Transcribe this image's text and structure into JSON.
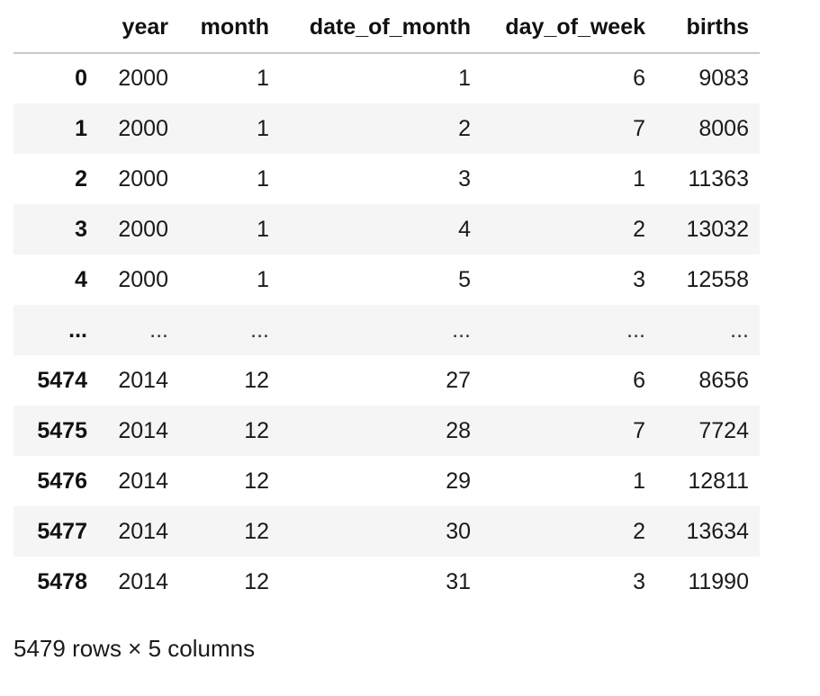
{
  "table": {
    "columns": [
      "",
      "year",
      "month",
      "date_of_month",
      "day_of_week",
      "births"
    ],
    "rows": [
      {
        "index": "0",
        "cells": [
          "2000",
          "1",
          "1",
          "6",
          "9083"
        ]
      },
      {
        "index": "1",
        "cells": [
          "2000",
          "1",
          "2",
          "7",
          "8006"
        ]
      },
      {
        "index": "2",
        "cells": [
          "2000",
          "1",
          "3",
          "1",
          "11363"
        ]
      },
      {
        "index": "3",
        "cells": [
          "2000",
          "1",
          "4",
          "2",
          "13032"
        ]
      },
      {
        "index": "4",
        "cells": [
          "2000",
          "1",
          "5",
          "3",
          "12558"
        ]
      },
      {
        "index": "...",
        "cells": [
          "...",
          "...",
          "...",
          "...",
          "..."
        ]
      },
      {
        "index": "5474",
        "cells": [
          "2014",
          "12",
          "27",
          "6",
          "8656"
        ]
      },
      {
        "index": "5475",
        "cells": [
          "2014",
          "12",
          "28",
          "7",
          "7724"
        ]
      },
      {
        "index": "5476",
        "cells": [
          "2014",
          "12",
          "29",
          "1",
          "12811"
        ]
      },
      {
        "index": "5477",
        "cells": [
          "2014",
          "12",
          "30",
          "2",
          "13634"
        ]
      },
      {
        "index": "5478",
        "cells": [
          "2014",
          "12",
          "31",
          "3",
          "11990"
        ]
      }
    ]
  },
  "summary": "5479 rows × 5 columns"
}
